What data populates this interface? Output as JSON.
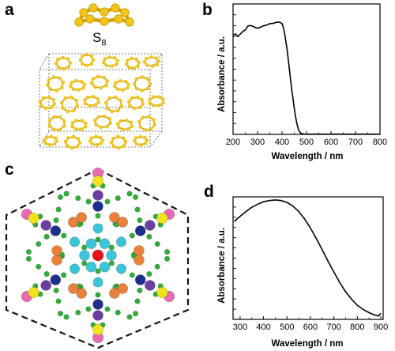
{
  "figure": {
    "panels": [
      {
        "letter": "a",
        "molecule_label": "S",
        "molecule_subscript": "8"
      },
      {
        "letter": "b"
      },
      {
        "letter": "c"
      },
      {
        "letter": "d"
      }
    ]
  },
  "colors": {
    "sulfur": "#f2c51b",
    "sulfur_dark": "#c99a00",
    "curve": "#000000",
    "red_atom": "#e3121b",
    "cyan_atom": "#3cc4d8",
    "orange_atom": "#e8823a",
    "purple_atom": "#6a3fa0",
    "navy_atom": "#1e2e8c",
    "yellow_atom": "#f2e21e",
    "pink_atom": "#e86ab0",
    "green_atom": "#2fae3a"
  },
  "chart_data": [
    {
      "type": "line",
      "panel": "b",
      "xlabel": "Wavelength / nm",
      "ylabel": "Absorbance / a.u.",
      "xlim": [
        200,
        800
      ],
      "xticks": [
        200,
        300,
        400,
        500,
        600,
        700,
        800
      ],
      "y_tick_labels": false,
      "series": [
        {
          "x": [
            200,
            210,
            220,
            230,
            240,
            250,
            260,
            270,
            280,
            290,
            300,
            310,
            320,
            330,
            340,
            350,
            360,
            370,
            380,
            390,
            400,
            405,
            410,
            415,
            420,
            425,
            430,
            435,
            440,
            445,
            450,
            455,
            460,
            465,
            470,
            475,
            480,
            490,
            500,
            520,
            550,
            600,
            650,
            700,
            750,
            800
          ],
          "y": [
            0.76,
            0.77,
            0.75,
            0.77,
            0.79,
            0.8,
            0.83,
            0.835,
            0.83,
            0.82,
            0.815,
            0.82,
            0.83,
            0.835,
            0.84,
            0.85,
            0.85,
            0.855,
            0.86,
            0.86,
            0.85,
            0.82,
            0.78,
            0.72,
            0.66,
            0.58,
            0.5,
            0.42,
            0.34,
            0.27,
            0.2,
            0.14,
            0.09,
            0.05,
            0.025,
            0.012,
            0.006,
            0.003,
            0.002,
            0.002,
            0.002,
            0.002,
            0.002,
            0.002,
            0.002,
            0.002
          ]
        }
      ]
    },
    {
      "type": "line",
      "panel": "d",
      "xlabel": "Wavelength / nm",
      "ylabel": "Absorbance / a.u.",
      "xlim": [
        270,
        910
      ],
      "xticks": [
        300,
        400,
        500,
        600,
        700,
        800,
        900
      ],
      "y_tick_labels": false,
      "series": [
        {
          "x": [
            275,
            300,
            325,
            350,
            375,
            400,
            425,
            450,
            475,
            500,
            525,
            550,
            575,
            600,
            625,
            650,
            675,
            700,
            725,
            750,
            775,
            800,
            825,
            850,
            875,
            890,
            900
          ],
          "y": [
            0.8,
            0.84,
            0.88,
            0.915,
            0.94,
            0.96,
            0.97,
            0.975,
            0.97,
            0.955,
            0.925,
            0.88,
            0.82,
            0.745,
            0.66,
            0.57,
            0.475,
            0.385,
            0.3,
            0.225,
            0.165,
            0.115,
            0.08,
            0.055,
            0.035,
            0.028,
            0.05
          ]
        }
      ]
    }
  ]
}
